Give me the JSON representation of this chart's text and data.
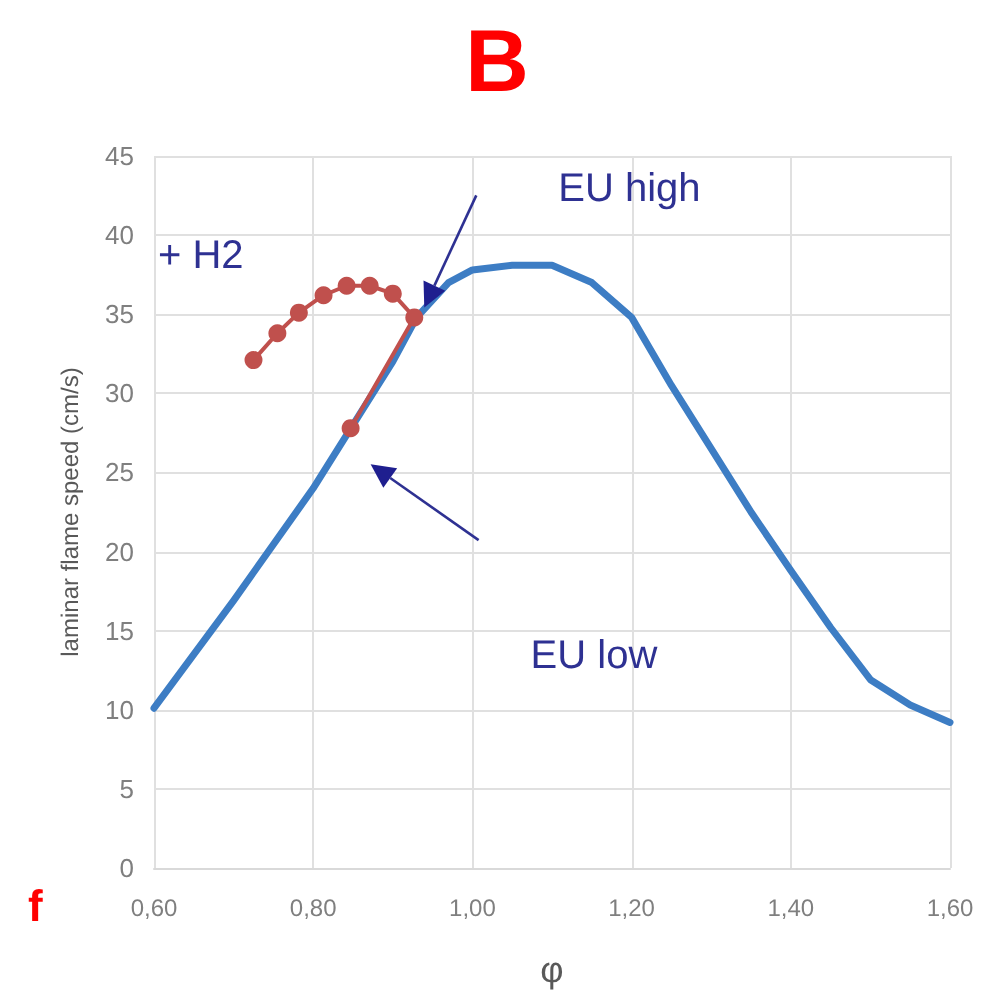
{
  "chart_data": {
    "type": "line",
    "title": "B",
    "xlabel": "φ",
    "ylabel": "laminar flame speed (cm/s)",
    "xlim": [
      0.6,
      1.6
    ],
    "ylim": [
      0,
      45
    ],
    "xticks": [
      {
        "value": 0.6,
        "label": "0,60"
      },
      {
        "value": 0.8,
        "label": "0,80"
      },
      {
        "value": 1.0,
        "label": "1,00"
      },
      {
        "value": 1.2,
        "label": "1,20"
      },
      {
        "value": 1.4,
        "label": "1,40"
      },
      {
        "value": 1.6,
        "label": "1,60"
      }
    ],
    "yticks": [
      0,
      5,
      10,
      15,
      20,
      25,
      30,
      35,
      40,
      45
    ],
    "grid": true,
    "series": [
      {
        "color": "#3d7dc4",
        "marker": "none",
        "x": [
          0.6,
          0.7,
          0.8,
          0.85,
          0.9,
          0.93,
          0.97,
          1.0,
          1.05,
          1.1,
          1.15,
          1.2,
          1.25,
          1.3,
          1.35,
          1.4,
          1.45,
          1.5,
          1.55,
          1.6
        ],
        "values": [
          10.1,
          16.9,
          24,
          28,
          32,
          34.8,
          37,
          37.8,
          38.1,
          38.1,
          37,
          34.8,
          30.5,
          26.5,
          22.5,
          18.8,
          15.2,
          11.9,
          10.3,
          9.2
        ]
      },
      {
        "color": "#c0504d",
        "marker": "circle",
        "x": [
          0.725,
          0.755,
          0.782,
          0.813,
          0.842,
          0.871,
          0.9,
          0.927,
          0.847
        ],
        "values": [
          32.1,
          33.8,
          35.1,
          36.2,
          36.8,
          36.8,
          36.3,
          34.8,
          27.8
        ]
      }
    ],
    "annotations": [
      "+ H2",
      "f",
      "EU high",
      "EU low"
    ]
  }
}
